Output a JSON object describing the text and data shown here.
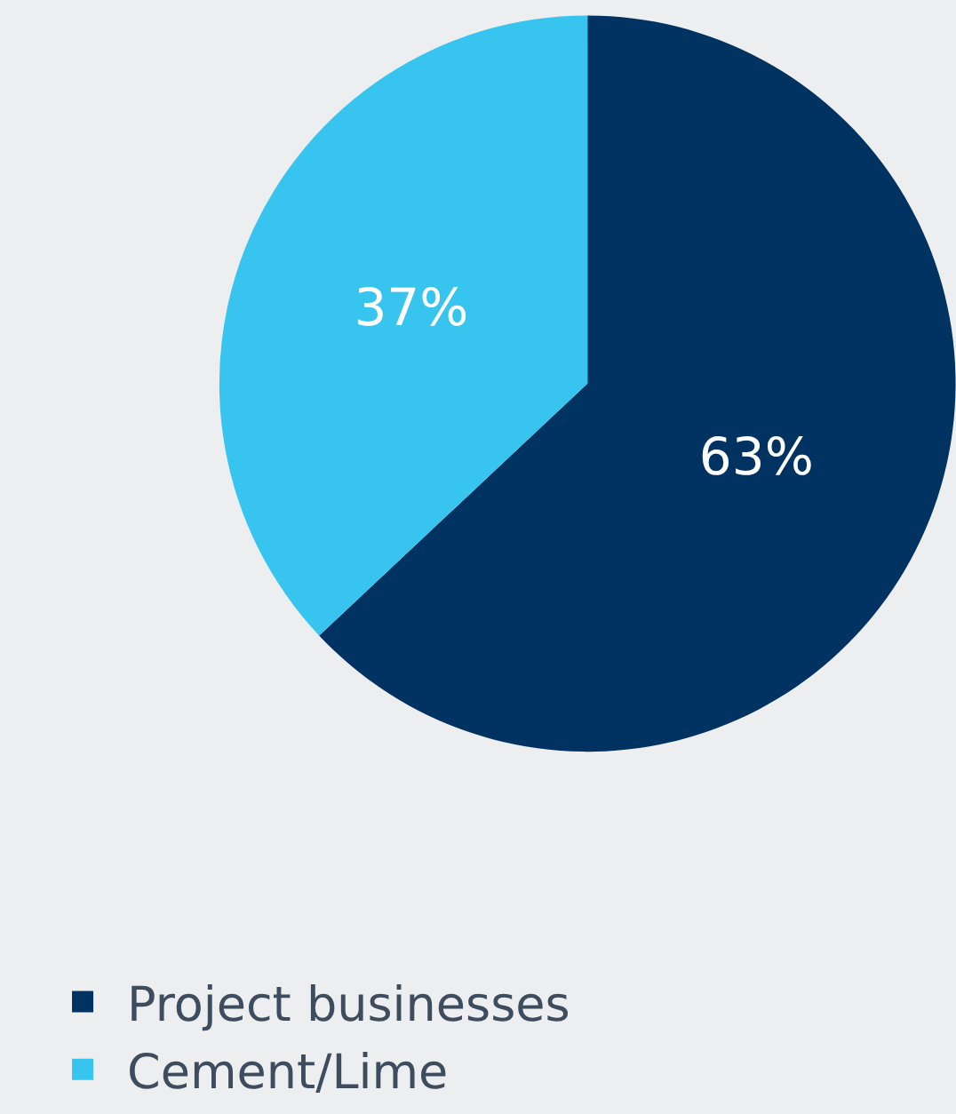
{
  "chart_data": {
    "type": "pie",
    "categories": [
      "Project businesses",
      "Cement/Lime"
    ],
    "values": [
      63,
      37
    ],
    "value_labels": [
      "63%",
      "37%"
    ],
    "colors": [
      "#003361",
      "#37c5f0"
    ],
    "legend": "bottom left"
  }
}
